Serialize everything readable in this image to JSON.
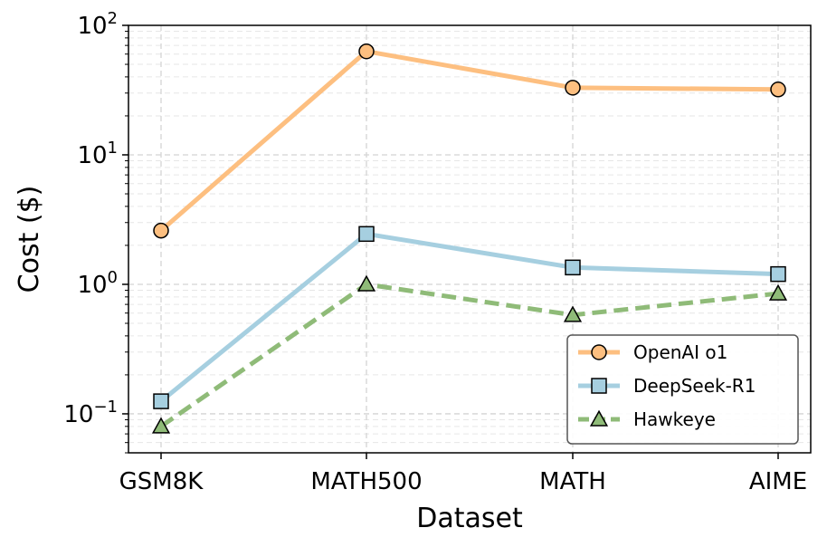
{
  "chart_data": {
    "type": "line",
    "title": "",
    "xlabel": "Dataset",
    "ylabel": "Cost ($)",
    "yscale": "log",
    "ylim": [
      0.05,
      100
    ],
    "grid": true,
    "legend_position": "bottom-right",
    "categories": [
      "GSM8K",
      "MATH500",
      "MATH",
      "AIME"
    ],
    "y_ticks": [
      {
        "base": "10",
        "exp": "−1"
      },
      {
        "base": "10",
        "exp": "0"
      },
      {
        "base": "10",
        "exp": "1"
      },
      {
        "base": "10",
        "exp": "2"
      }
    ],
    "series": [
      {
        "name": "OpenAI o1",
        "values": [
          2.6,
          63,
          33,
          32
        ],
        "color": "#fdbf80",
        "marker": "circle",
        "line_style": "solid"
      },
      {
        "name": "DeepSeek-R1",
        "values": [
          0.125,
          2.45,
          1.35,
          1.2
        ],
        "color": "#a6cfe0",
        "marker": "square",
        "line_style": "solid"
      },
      {
        "name": "Hawkeye",
        "values": [
          0.08,
          1.0,
          0.58,
          0.85
        ],
        "color": "#8fbb78",
        "marker": "triangle",
        "line_style": "dashed"
      }
    ]
  }
}
